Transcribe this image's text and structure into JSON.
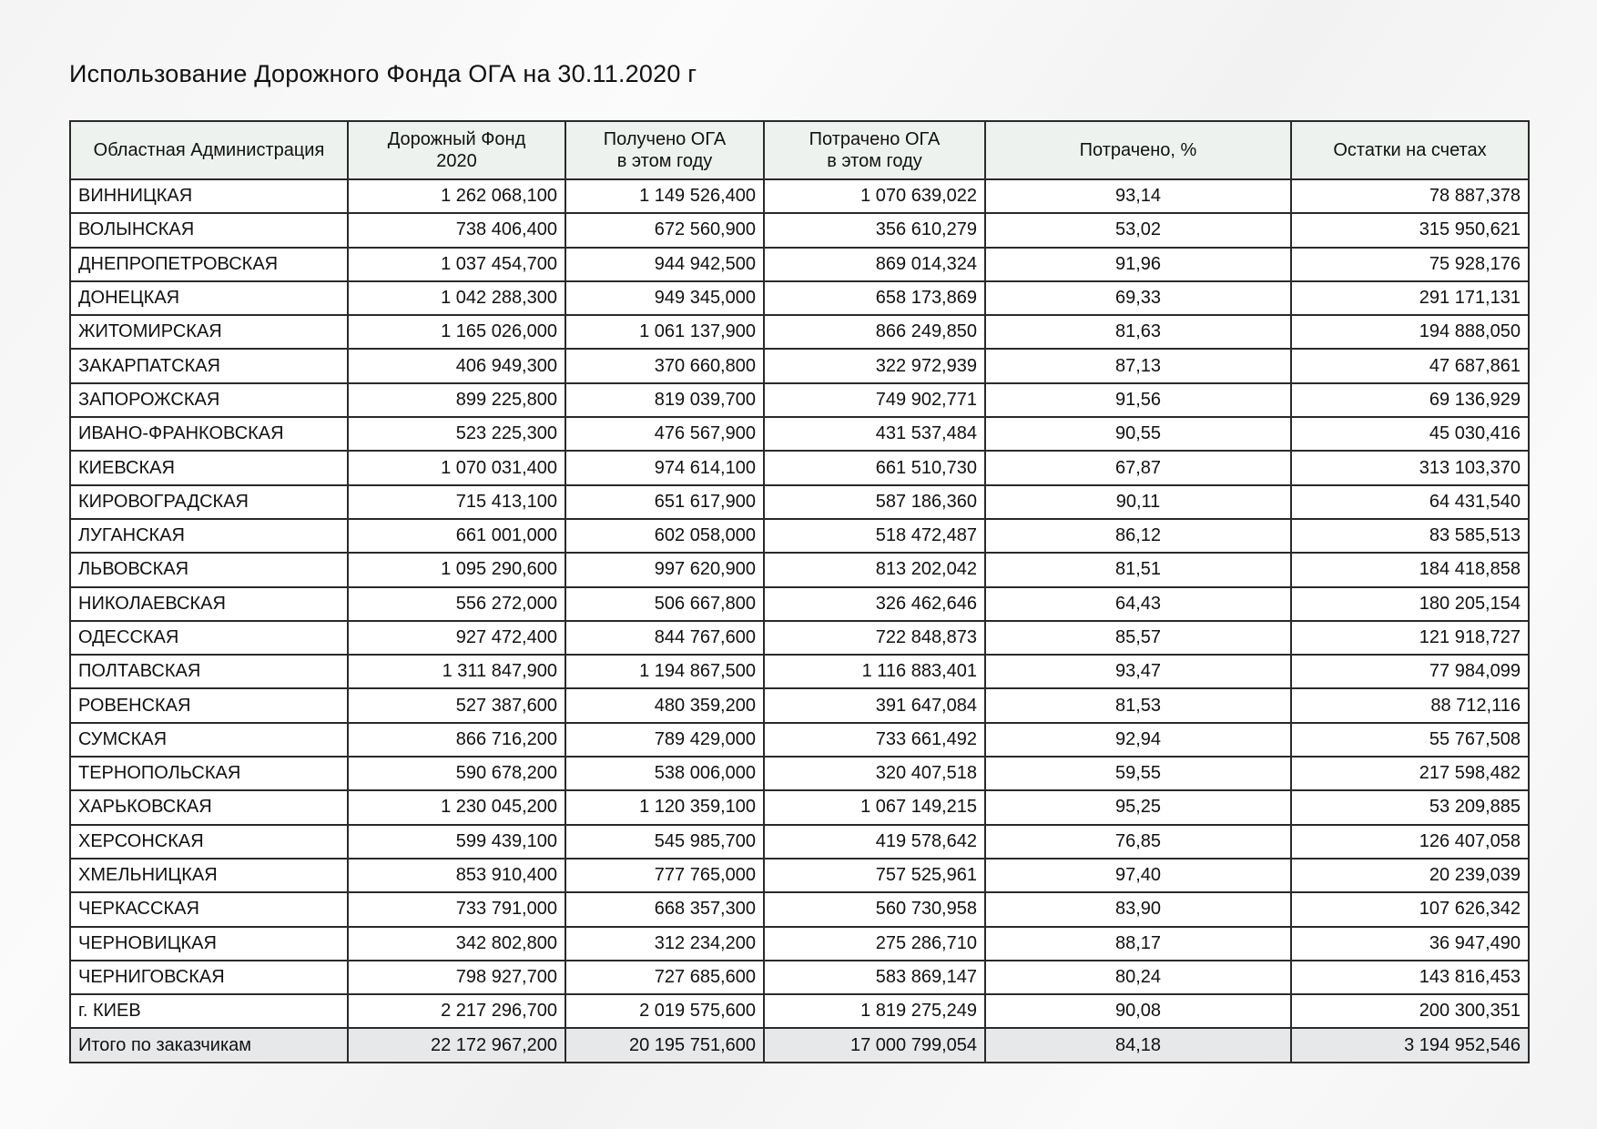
{
  "title": "Использование Дорожного Фонда ОГА на 30.11.2020 г",
  "table": {
    "header": [
      "Областная Администрация",
      "Дорожный Фонд\n2020",
      "Получено ОГА\nв этом году",
      "Потрачено ОГА\nв этом году",
      "Потрачено, %",
      "Остатки на счетах"
    ],
    "rows": [
      [
        "ВИННИЦКАЯ",
        "1 262 068,100",
        "1 149 526,400",
        "1 070 639,022",
        "93,14",
        "78 887,378"
      ],
      [
        "ВОЛЫНСКАЯ",
        "738 406,400",
        "672 560,900",
        "356 610,279",
        "53,02",
        "315 950,621"
      ],
      [
        "ДНЕПРОПЕТРОВСКАЯ",
        "1 037 454,700",
        "944 942,500",
        "869 014,324",
        "91,96",
        "75 928,176"
      ],
      [
        "ДОНЕЦКАЯ",
        "1 042 288,300",
        "949 345,000",
        "658 173,869",
        "69,33",
        "291 171,131"
      ],
      [
        "ЖИТОМИРСКАЯ",
        "1 165 026,000",
        "1 061 137,900",
        "866 249,850",
        "81,63",
        "194 888,050"
      ],
      [
        "ЗАКАРПАТСКАЯ",
        "406 949,300",
        "370 660,800",
        "322 972,939",
        "87,13",
        "47 687,861"
      ],
      [
        "ЗАПОРОЖСКАЯ",
        "899 225,800",
        "819 039,700",
        "749 902,771",
        "91,56",
        "69 136,929"
      ],
      [
        "ИВАНО-ФРАНКОВСКАЯ",
        "523 225,300",
        "476 567,900",
        "431 537,484",
        "90,55",
        "45 030,416"
      ],
      [
        "КИЕВСКАЯ",
        "1 070 031,400",
        "974 614,100",
        "661 510,730",
        "67,87",
        "313 103,370"
      ],
      [
        "КИРОВОГРАДСКАЯ",
        "715 413,100",
        "651 617,900",
        "587 186,360",
        "90,11",
        "64 431,540"
      ],
      [
        "ЛУГАНСКАЯ",
        "661 001,000",
        "602 058,000",
        "518 472,487",
        "86,12",
        "83 585,513"
      ],
      [
        "ЛЬВОВСКАЯ",
        "1 095 290,600",
        "997 620,900",
        "813 202,042",
        "81,51",
        "184 418,858"
      ],
      [
        "НИКОЛАЕВСКАЯ",
        "556 272,000",
        "506 667,800",
        "326 462,646",
        "64,43",
        "180 205,154"
      ],
      [
        "ОДЕССКАЯ",
        "927 472,400",
        "844 767,600",
        "722 848,873",
        "85,57",
        "121 918,727"
      ],
      [
        "ПОЛТАВСКАЯ",
        "1 311 847,900",
        "1 194 867,500",
        "1 116 883,401",
        "93,47",
        "77 984,099"
      ],
      [
        "РОВЕНСКАЯ",
        "527 387,600",
        "480 359,200",
        "391 647,084",
        "81,53",
        "88 712,116"
      ],
      [
        "СУМСКАЯ",
        "866 716,200",
        "789 429,000",
        "733 661,492",
        "92,94",
        "55 767,508"
      ],
      [
        "ТЕРНОПОЛЬСКАЯ",
        "590 678,200",
        "538 006,000",
        "320 407,518",
        "59,55",
        "217 598,482"
      ],
      [
        "ХАРЬКОВСКАЯ",
        "1 230 045,200",
        "1 120 359,100",
        "1 067 149,215",
        "95,25",
        "53 209,885"
      ],
      [
        "ХЕРСОНСКАЯ",
        "599 439,100",
        "545 985,700",
        "419 578,642",
        "76,85",
        "126 407,058"
      ],
      [
        "ХМЕЛЬНИЦКАЯ",
        "853 910,400",
        "777 765,000",
        "757 525,961",
        "97,40",
        "20 239,039"
      ],
      [
        "ЧЕРКАССКАЯ",
        "733 791,000",
        "668 357,300",
        "560 730,958",
        "83,90",
        "107 626,342"
      ],
      [
        "ЧЕРНОВИЦКАЯ",
        "342 802,800",
        "312 234,200",
        "275 286,710",
        "88,17",
        "36 947,490"
      ],
      [
        "ЧЕРНИГОВСКАЯ",
        "798 927,700",
        "727 685,600",
        "583 869,147",
        "80,24",
        "143 816,453"
      ],
      [
        "г. КИЕВ",
        "2 217 296,700",
        "2 019 575,600",
        "1 819 275,249",
        "90,08",
        "200 300,351"
      ]
    ],
    "total": [
      "Итого по заказчикам",
      "22 172 967,200",
      "20 195 751,600",
      "17 000 799,054",
      "84,18",
      "3 194 952,546"
    ]
  }
}
